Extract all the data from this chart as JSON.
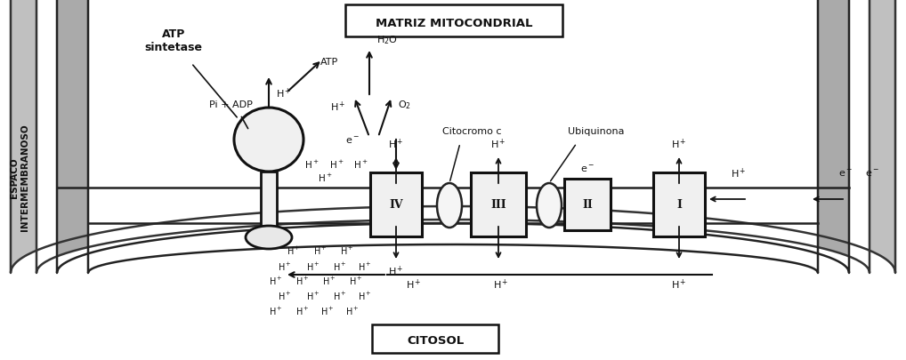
{
  "fig_width": 10.18,
  "fig_height": 4.06,
  "bg_color": "#ffffff",
  "title_matrix": "MATRIZ MITOCONDRIAL",
  "title_citosol": "CITOSOL",
  "label_espaco": "ESPACO\nINTERMEMBRANOSO",
  "label_atp_sintase": "ATP\nsintetase",
  "label_citocromo": "Citocromo c",
  "label_ubiquinona": "Ubiquinona",
  "pi_adp": "Pi + ADP",
  "outer_gray": "#b8b8b8",
  "mem_gray": "#aaaaaa",
  "white": "#ffffff",
  "black": "#111111"
}
